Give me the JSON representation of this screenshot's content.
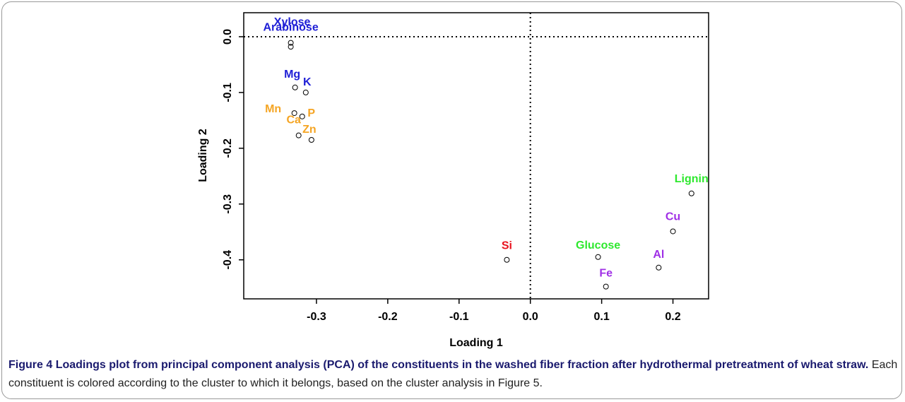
{
  "chart_data": {
    "type": "scatter",
    "xlabel": "Loading 1",
    "ylabel": "Loading 2",
    "labels": [
      "Arabinose",
      "Xylose",
      "Mg",
      "K",
      "Mn",
      "P",
      "Ca",
      "Zn",
      "Si",
      "Lignin",
      "Cu",
      "Glucose",
      "Al",
      "Fe"
    ],
    "x": [
      -0.336,
      -0.336,
      -0.33,
      -0.315,
      -0.331,
      -0.32,
      -0.325,
      -0.307,
      -0.033,
      0.226,
      0.2,
      0.095,
      0.18,
      0.106
    ],
    "values": [
      -0.011,
      -0.018,
      -0.091,
      -0.1,
      -0.137,
      -0.143,
      -0.177,
      -0.185,
      -0.4,
      -0.281,
      -0.349,
      -0.395,
      -0.414,
      -0.448
    ],
    "colors": [
      "#1f1fd6",
      "#1f1fd6",
      "#1f1fd6",
      "#1f1fd6",
      "#f5a524",
      "#f5a524",
      "#f5a524",
      "#f5a524",
      "#e8121e",
      "#2ee82e",
      "#a030e6",
      "#2ee82e",
      "#a030e6",
      "#a030e6"
    ],
    "xlim": [
      -0.402,
      0.25
    ],
    "ylim": [
      -0.47,
      0.043
    ],
    "xticks": [
      -0.3,
      -0.2,
      -0.1,
      {
        "value": 0,
        "label": "0.0"
      },
      0.1,
      0.2
    ],
    "yticks": [
      {
        "value": 0,
        "label": "0.0"
      },
      -0.1,
      -0.2,
      -0.3,
      -0.4
    ],
    "hline": 0,
    "vline": 0
  },
  "caption": {
    "label": "Figure 4",
    "title": "Loadings plot from principal component analysis (PCA) of the constituents in the washed fiber fraction after hydrothermal pretreatment of wheat straw.",
    "text": "Each constituent is colored according to the cluster to which it belongs, based on the cluster analysis in Figure 5."
  }
}
